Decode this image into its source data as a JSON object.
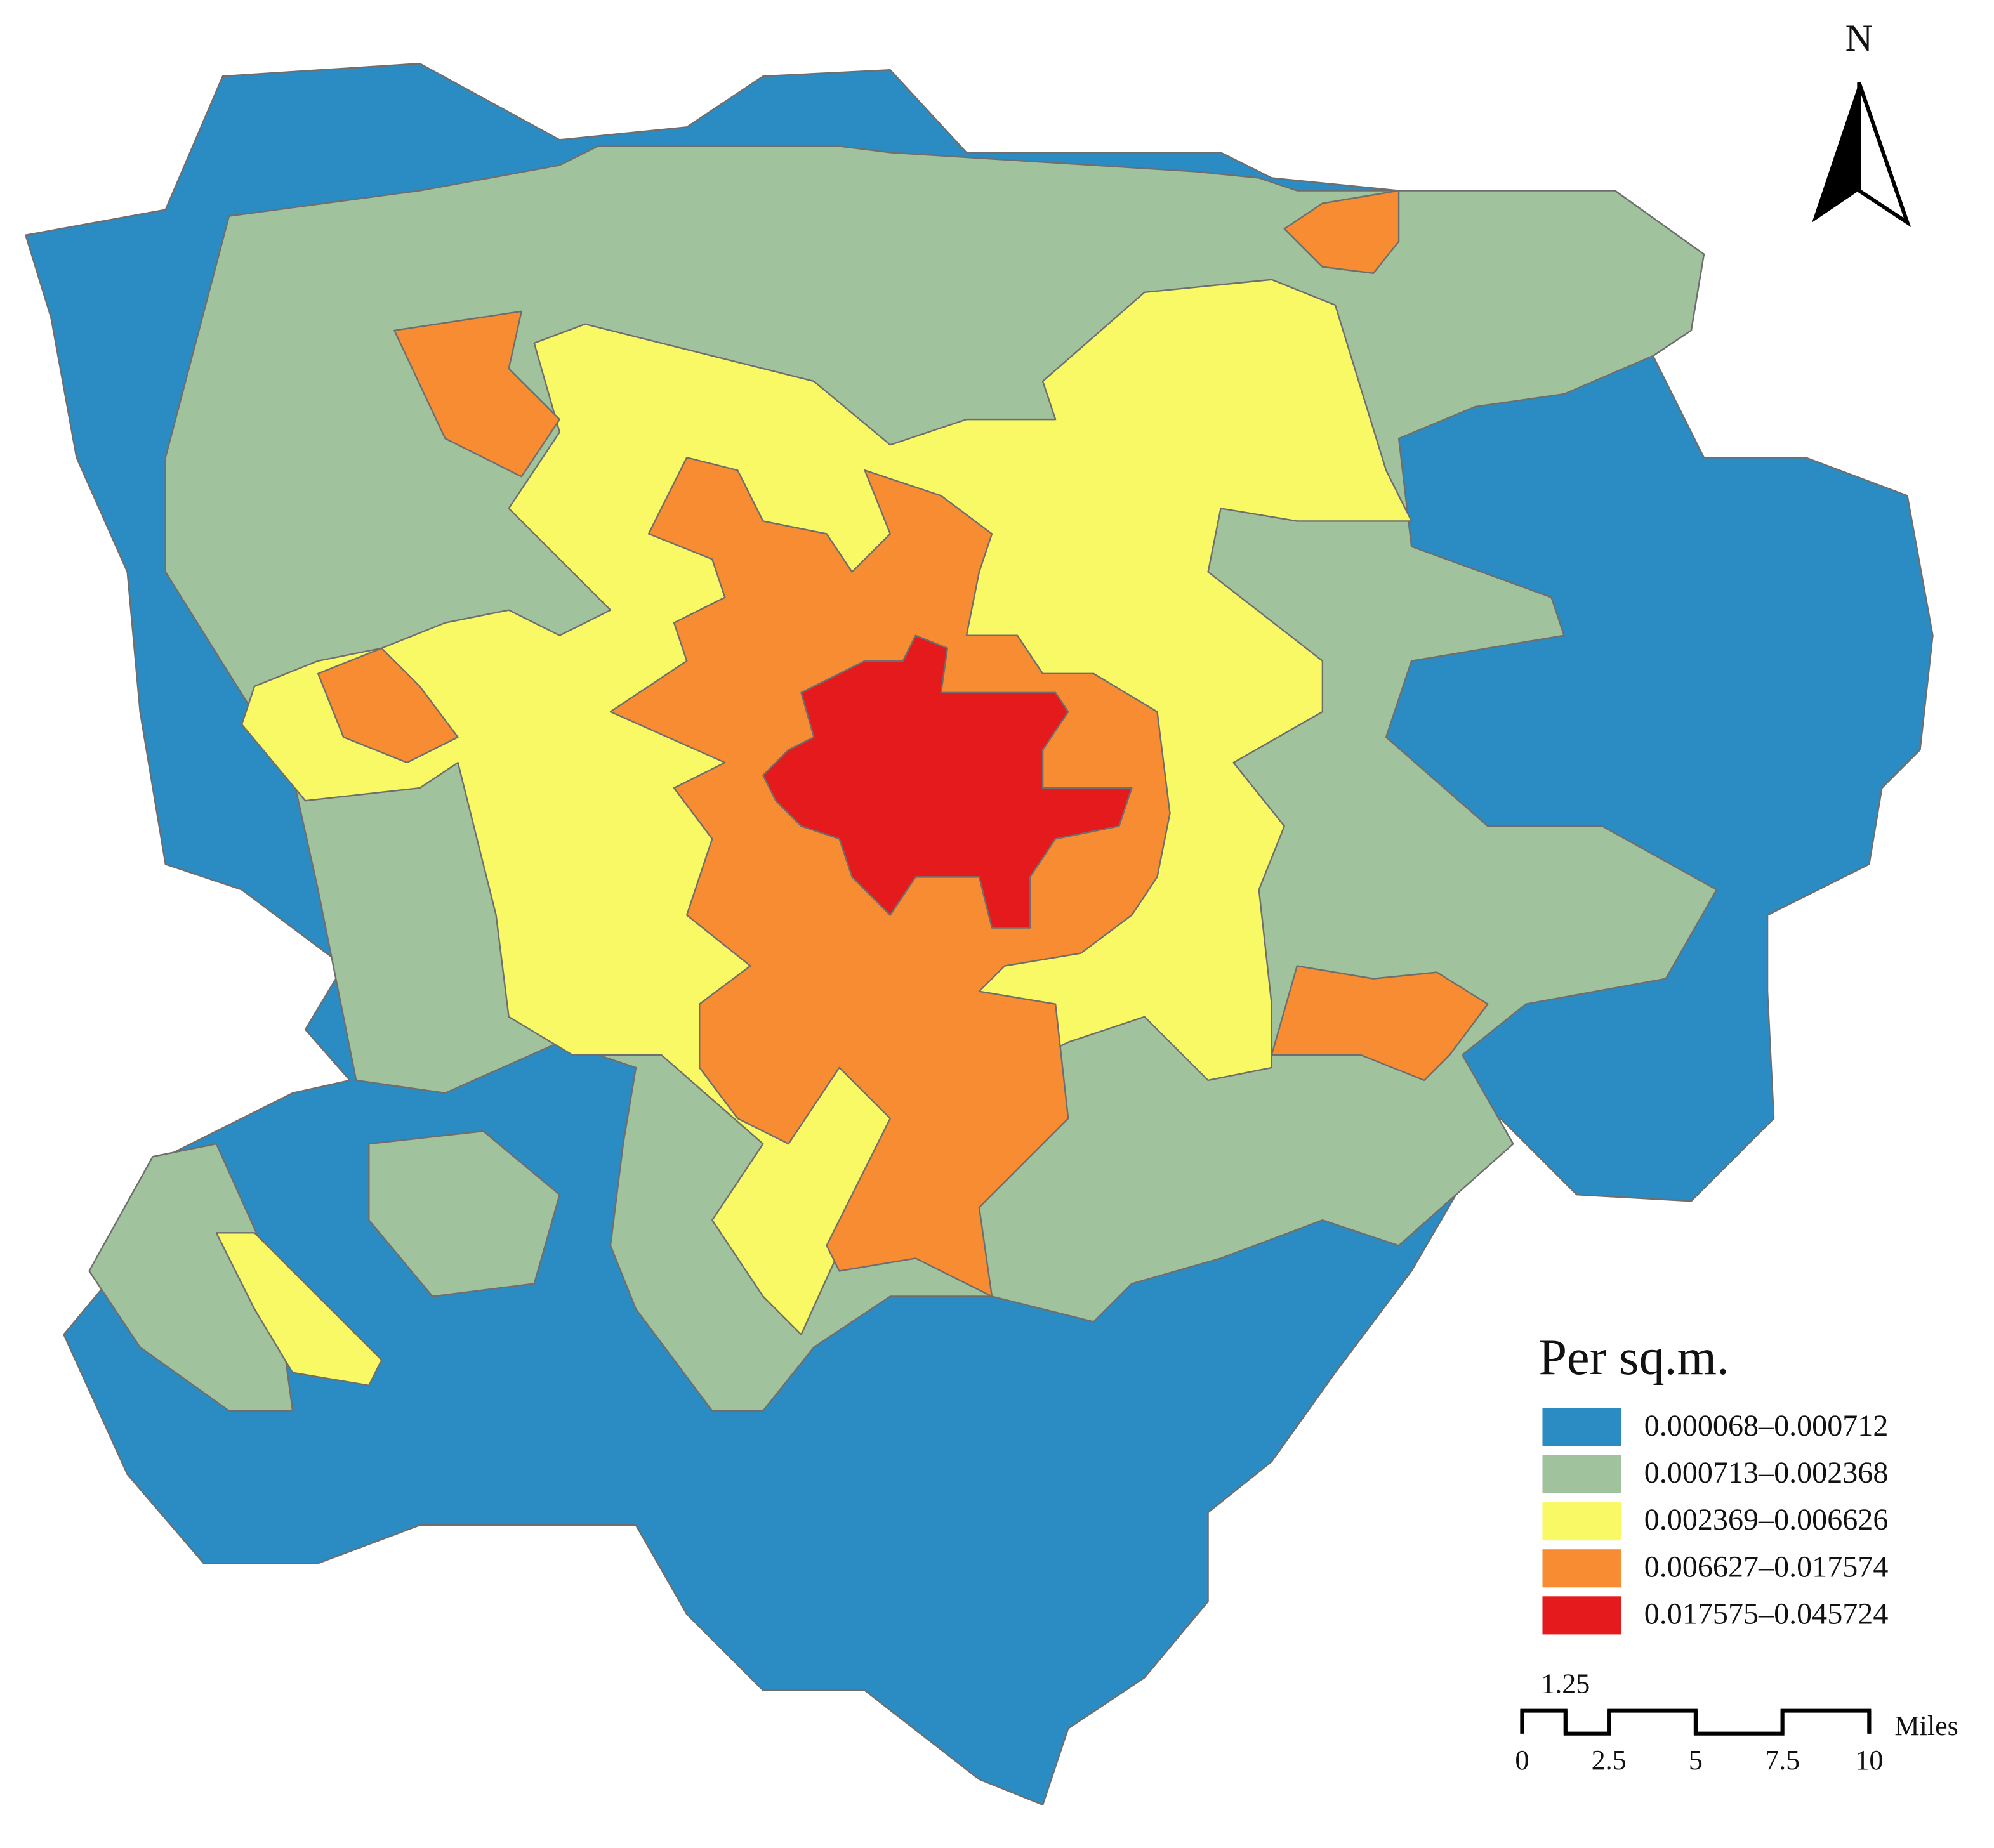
{
  "legend": {
    "title": "Per sq.m.",
    "classes": [
      {
        "label": "0.000068–0.000712",
        "color": "#2b8cc4"
      },
      {
        "label": "0.000713–0.002368",
        "color": "#a0c29c"
      },
      {
        "label": "0.002369–0.006626",
        "color": "#f9f966"
      },
      {
        "label": "0.006627–0.017574",
        "color": "#f78c33"
      },
      {
        "label": "0.017575–0.045724",
        "color": "#e41a1c"
      }
    ]
  },
  "north_arrow": {
    "label": "N"
  },
  "scale_bar": {
    "ticks": [
      0,
      1.25,
      2.5,
      5,
      7.5,
      10
    ],
    "unit": "Miles"
  }
}
